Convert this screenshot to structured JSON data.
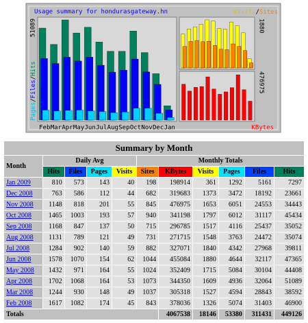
{
  "graph": {
    "title": "Usage summary for hondurasgateway.hn",
    "separator": "/",
    "legend_left": [
      "Pages",
      "Files",
      "Hits"
    ],
    "legend_top_right": [
      "Visits",
      "Sites"
    ],
    "legend_bottom_right": "KBytes",
    "max_hits": 51089,
    "max_visits": 1880,
    "max_kbytes": 476975,
    "months": [
      "Feb",
      "Mar",
      "Apr",
      "May",
      "Jun",
      "Jul",
      "Aug",
      "Sep",
      "Oct",
      "Nov",
      "Dec",
      "Jan"
    ]
  },
  "table": {
    "title": "Summary by Month",
    "month_header": "Month",
    "daily_header": "Daily Avg",
    "monthly_header": "Monthly Totals",
    "daily_cols": [
      "Hits",
      "Files",
      "Pages",
      "Visits"
    ],
    "monthly_cols": [
      "Sites",
      "KBytes",
      "Visits",
      "Pages",
      "Files",
      "Hits"
    ],
    "rows": [
      [
        "Jan 2009",
        810,
        573,
        143,
        40,
        198,
        198914,
        361,
        1292,
        5161,
        7297
      ],
      [
        "Dec 2008",
        763,
        586,
        112,
        44,
        682,
        319683,
        1373,
        3472,
        18192,
        23661
      ],
      [
        "Nov 2008",
        1148,
        818,
        201,
        55,
        845,
        476975,
        1653,
        6051,
        24553,
        34443
      ],
      [
        "Oct 2008",
        1465,
        1003,
        193,
        57,
        940,
        341198,
        1797,
        6012,
        31117,
        45434
      ],
      [
        "Sep 2008",
        1168,
        847,
        137,
        50,
        715,
        296785,
        1517,
        4116,
        25437,
        35052
      ],
      [
        "Aug 2008",
        1131,
        789,
        121,
        49,
        731,
        271715,
        1548,
        3763,
        24472,
        35074
      ],
      [
        "Jul 2008",
        1284,
        902,
        140,
        59,
        882,
        327071,
        1840,
        4342,
        27968,
        39811
      ],
      [
        "Jun 2008",
        1578,
        1070,
        154,
        62,
        1044,
        455084,
        1880,
        4644,
        32117,
        47365
      ],
      [
        "May 2008",
        1432,
        971,
        164,
        55,
        1024,
        352409,
        1715,
        5084,
        30104,
        44408
      ],
      [
        "Apr 2008",
        1702,
        1068,
        164,
        53,
        1073,
        344350,
        1609,
        4936,
        32064,
        51089
      ],
      [
        "Mar 2008",
        1244,
        930,
        148,
        49,
        1037,
        305318,
        1527,
        4594,
        28843,
        38592
      ],
      [
        "Feb 2008",
        1617,
        1082,
        174,
        45,
        843,
        378036,
        1326,
        5074,
        31403,
        46900
      ]
    ],
    "totals_label": "Totals",
    "totals": [
      4067538,
      18146,
      53380,
      311431,
      449126
    ]
  }
}
